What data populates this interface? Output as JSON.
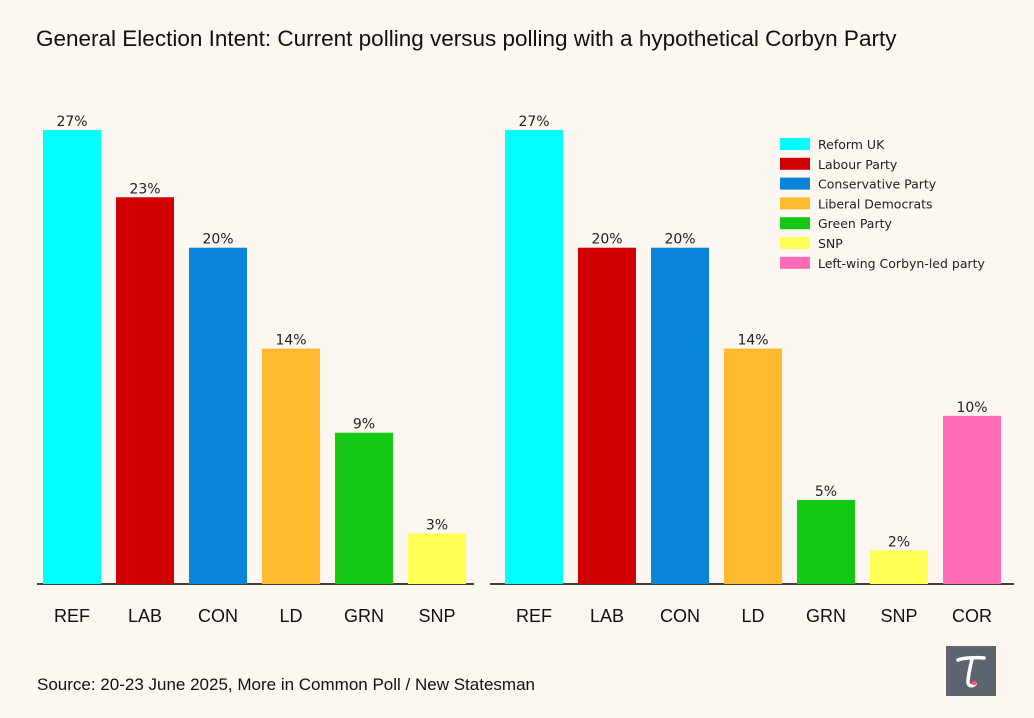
{
  "title": "General Election Intent: Current polling versus polling with a hypothetical Corbyn Party",
  "source": "Source: 20-23 June 2025, More in Common Poll / New Statesman",
  "logo": {
    "icon": "tortoise-t-icon",
    "glyph": "T"
  },
  "colors": {
    "background": "#fdf7f2",
    "REF": "#00ffff",
    "LAB": "#d00000",
    "CON": "#0a84d9",
    "LD": "#ffba30",
    "GRN": "#14c814",
    "SNP": "#ffff55",
    "COR": "#ff6bb5",
    "axis": "#000000",
    "logo_bg": "#5d6470",
    "logo_accent": "#ff5566"
  },
  "chart_data": [
    {
      "type": "bar",
      "name": "current",
      "categories": [
        "REF",
        "LAB",
        "CON",
        "LD",
        "GRN",
        "SNP"
      ],
      "values": [
        27,
        23,
        20,
        14,
        9,
        3
      ],
      "value_labels": [
        "27%",
        "23%",
        "20%",
        "14%",
        "9%",
        "3%"
      ],
      "ylim": [
        0,
        27
      ],
      "xlabel": "",
      "ylabel": ""
    },
    {
      "type": "bar",
      "name": "with_corbyn_party",
      "categories": [
        "REF",
        "LAB",
        "CON",
        "LD",
        "GRN",
        "SNP",
        "COR"
      ],
      "values": [
        27,
        20,
        20,
        14,
        5,
        2,
        10
      ],
      "value_labels": [
        "27%",
        "20%",
        "20%",
        "14%",
        "5%",
        "2%",
        "10%"
      ],
      "ylim": [
        0,
        27
      ],
      "xlabel": "",
      "ylabel": "",
      "legend": {
        "placement": "top-right",
        "entries": [
          {
            "label": "Reform UK",
            "key": "REF"
          },
          {
            "label": "Labour Party",
            "key": "LAB"
          },
          {
            "label": "Conservative Party",
            "key": "CON"
          },
          {
            "label": "Liberal Democrats",
            "key": "LD"
          },
          {
            "label": "Green Party",
            "key": "GRN"
          },
          {
            "label": "SNP",
            "key": "SNP"
          },
          {
            "label": "Left-wing Corbyn-led party",
            "key": "COR"
          }
        ]
      }
    }
  ]
}
